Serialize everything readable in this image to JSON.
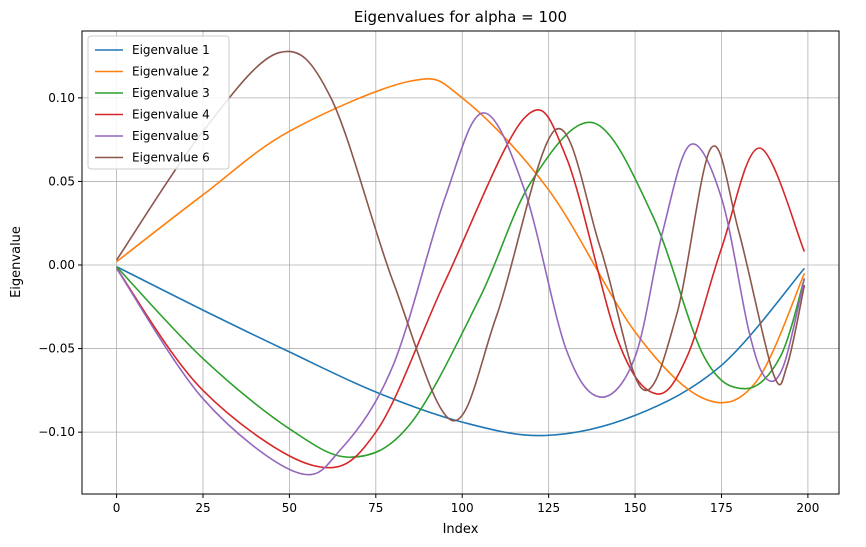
{
  "chart_data": {
    "type": "line",
    "title": "Eigenvalues for alpha = 100",
    "xlabel": "Index",
    "ylabel": "Eigenvalue",
    "xlim": [
      -10,
      209
    ],
    "ylim": [
      -0.137,
      0.14
    ],
    "xticks": [
      0,
      25,
      50,
      75,
      100,
      125,
      150,
      175,
      200
    ],
    "yticks": [
      -0.1,
      -0.05,
      0.0,
      0.05,
      0.1
    ],
    "xtick_labels": [
      "0",
      "25",
      "50",
      "75",
      "100",
      "125",
      "150",
      "175",
      "200"
    ],
    "ytick_labels": [
      "−0.10",
      "−0.05",
      "0.00",
      "0.05",
      "0.10"
    ],
    "grid": true,
    "legend_position": "top-left",
    "series": [
      {
        "name": "Eigenvalue 1",
        "color": "#1f77b4",
        "x": [
          0,
          25,
          50,
          75,
          100,
          124,
          150,
          175,
          199
        ],
        "y": [
          -0.001,
          -0.027,
          -0.052,
          -0.076,
          -0.094,
          -0.102,
          -0.09,
          -0.06,
          -0.002
        ]
      },
      {
        "name": "Eigenvalue 2",
        "color": "#ff7f0e",
        "x": [
          0,
          25,
          50,
          85,
          100,
          125,
          150,
          170,
          185,
          199
        ],
        "y": [
          0.002,
          0.042,
          0.08,
          0.11,
          0.1,
          0.045,
          -0.04,
          -0.08,
          -0.07,
          -0.005
        ]
      },
      {
        "name": "Eigenvalue 3",
        "color": "#2ca02c",
        "x": [
          0,
          25,
          50,
          68,
          85,
          105,
          120,
          138,
          155,
          170,
          182,
          192,
          199
        ],
        "y": [
          -0.001,
          -0.056,
          -0.098,
          -0.115,
          -0.095,
          -0.02,
          0.05,
          0.085,
          0.03,
          -0.055,
          -0.074,
          -0.055,
          -0.008
        ]
      },
      {
        "name": "Eigenvalue 4",
        "color": "#d62728",
        "x": [
          0,
          25,
          57,
          75,
          95,
          118,
          130,
          145,
          156,
          165,
          175,
          186,
          199
        ],
        "y": [
          -0.002,
          -0.075,
          -0.12,
          -0.1,
          -0.01,
          0.088,
          0.065,
          -0.045,
          -0.077,
          -0.055,
          0.01,
          0.07,
          0.008
        ]
      },
      {
        "name": "Eigenvalue 5",
        "color": "#9467bd",
        "x": [
          0,
          25,
          52,
          65,
          80,
          95,
          106,
          118,
          130,
          140,
          150,
          158,
          166,
          175,
          183,
          188,
          193,
          199
        ],
        "y": [
          -0.002,
          -0.08,
          -0.124,
          -0.11,
          -0.06,
          0.04,
          0.091,
          0.045,
          -0.05,
          -0.079,
          -0.055,
          0.02,
          0.072,
          0.04,
          -0.04,
          -0.068,
          -0.06,
          -0.008
        ]
      },
      {
        "name": "Eigenvalue 6",
        "color": "#8c564b",
        "x": [
          0,
          25,
          47,
          62,
          80,
          97,
          110,
          127,
          140,
          152,
          162,
          172,
          180,
          190,
          194,
          199
        ],
        "y": [
          0.003,
          0.08,
          0.127,
          0.1,
          -0.01,
          -0.093,
          -0.03,
          0.081,
          0.01,
          -0.074,
          -0.03,
          0.07,
          0.02,
          -0.065,
          -0.06,
          -0.012
        ]
      }
    ]
  }
}
